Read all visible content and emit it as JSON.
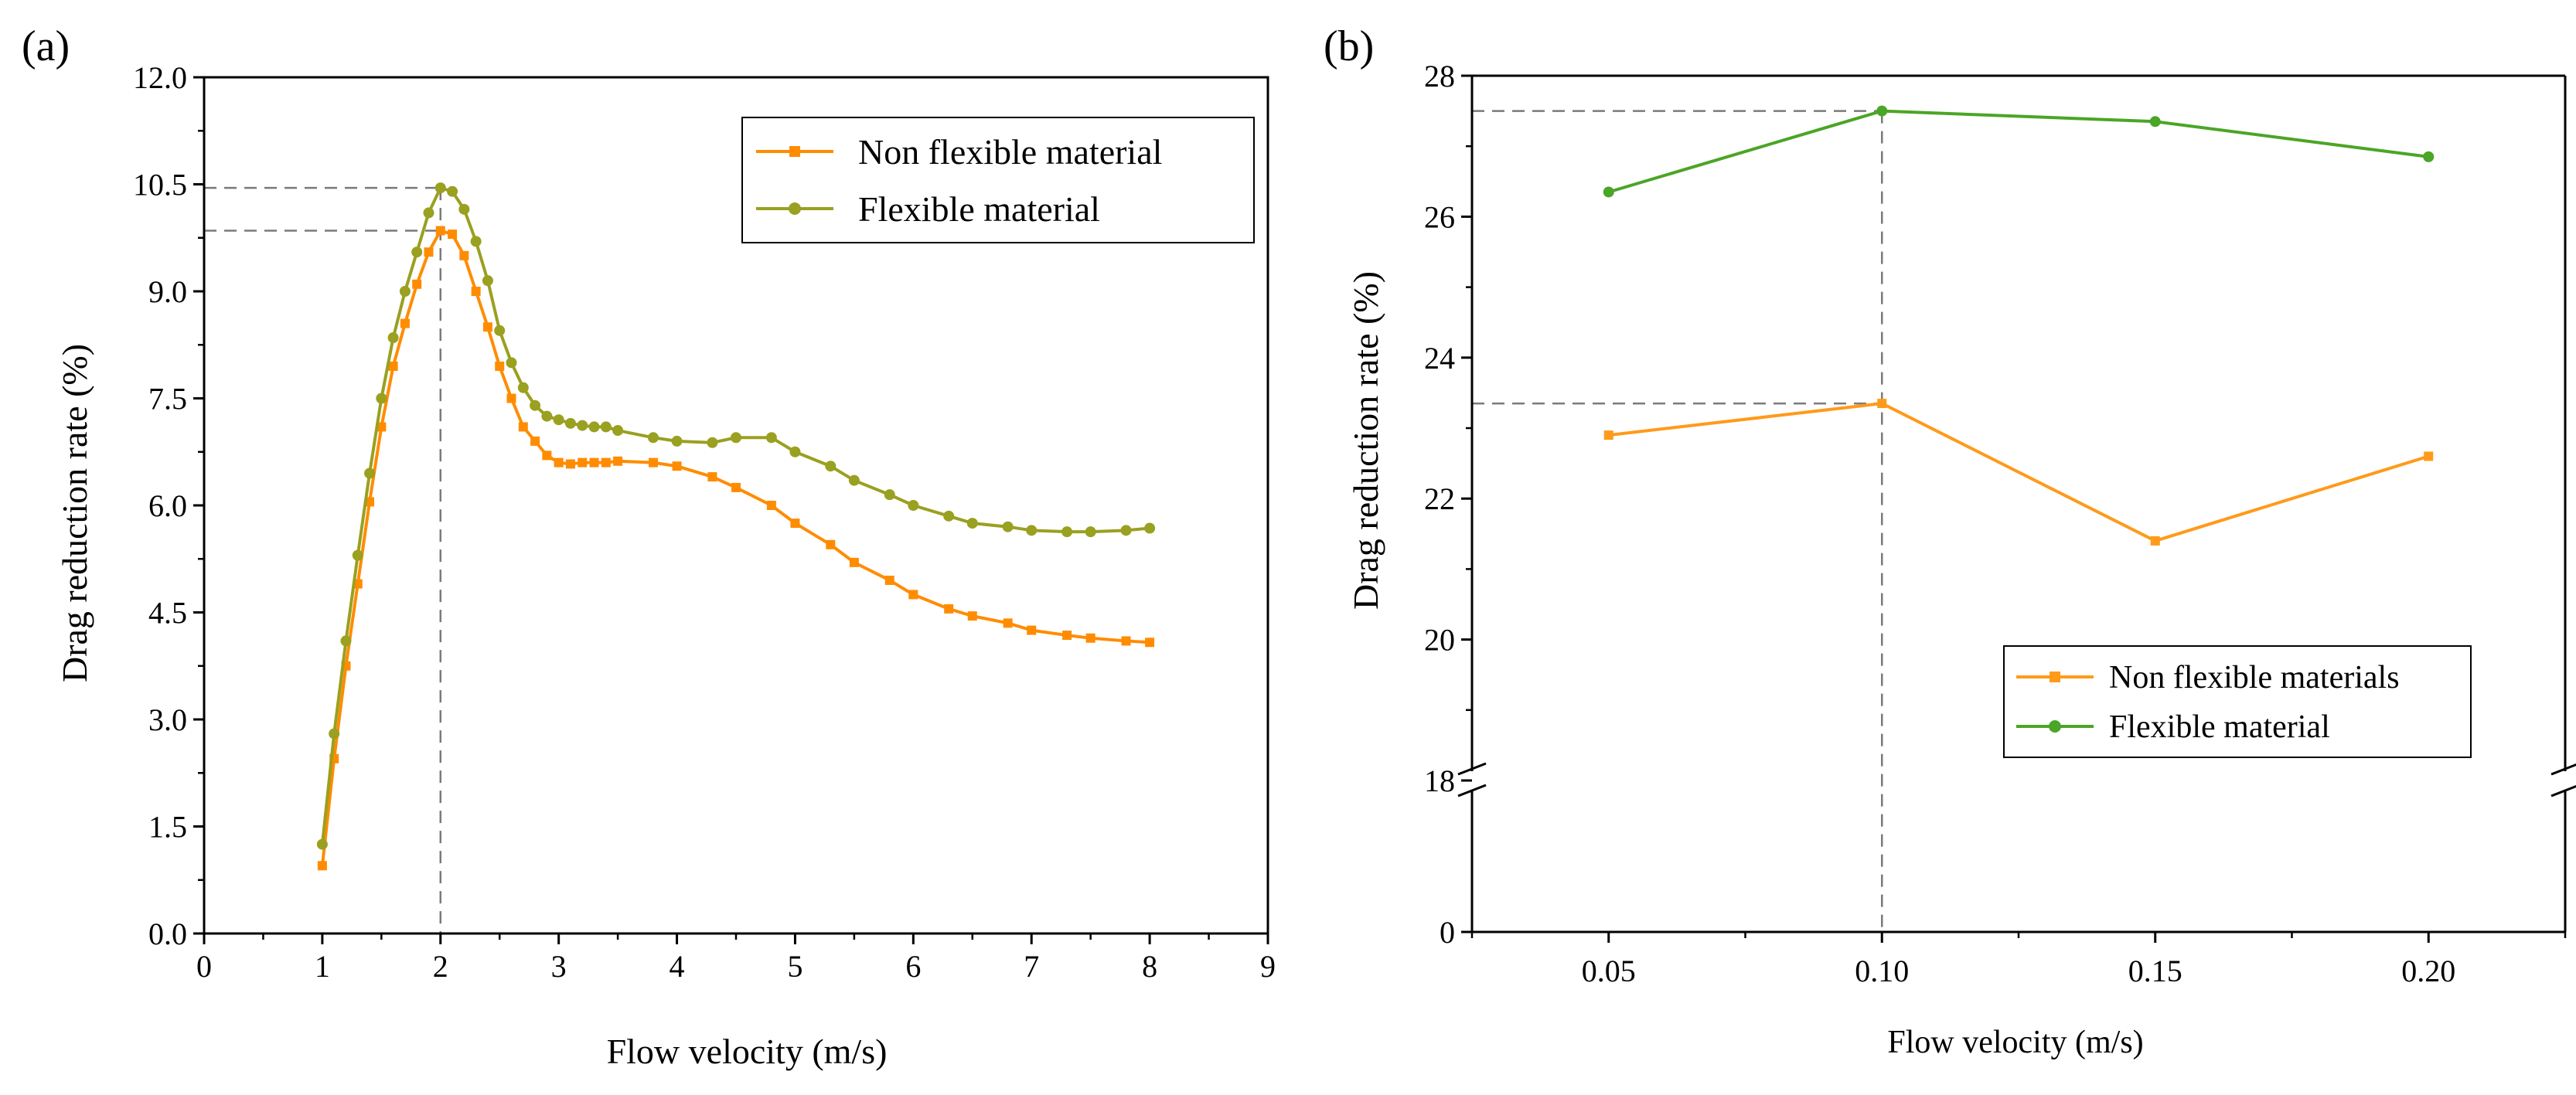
{
  "colors": {
    "non_flexible_a": "#ff8c00",
    "flexible_a": "#9aa020",
    "non_flexible_b": "#ff9a1a",
    "flexible_b": "#4ba526",
    "guide": "#7a7a7a"
  },
  "chart_data": [
    {
      "panel_label": "(a)",
      "type": "line",
      "xlabel": "Flow velocity (m/s)",
      "ylabel": "Drag reduction rate (%)",
      "xlim": [
        0,
        9
      ],
      "ylim": [
        0,
        12
      ],
      "x_ticks": [
        "0",
        "1",
        "2",
        "3",
        "4",
        "5",
        "6",
        "7",
        "8",
        "9"
      ],
      "y_ticks": [
        "0.0",
        "1.5",
        "3.0",
        "4.5",
        "6.0",
        "7.5",
        "9.0",
        "10.5",
        "12.0"
      ],
      "legend_position": "top-right",
      "guide_lines": {
        "x": 2,
        "y": [
          10.45,
          9.85
        ]
      },
      "series": [
        {
          "name": "Non flexible material",
          "marker": "square",
          "x": [
            1.0,
            1.1,
            1.2,
            1.3,
            1.4,
            1.5,
            1.6,
            1.7,
            1.8,
            1.9,
            2.0,
            2.1,
            2.2,
            2.3,
            2.4,
            2.5,
            2.6,
            2.7,
            2.8,
            2.9,
            3.0,
            3.1,
            3.2,
            3.3,
            3.4,
            3.5,
            3.8,
            4.0,
            4.3,
            4.5,
            4.8,
            5.0,
            5.3,
            5.5,
            5.8,
            6.0,
            6.3,
            6.5,
            6.8,
            7.0,
            7.3,
            7.5,
            7.8,
            8.0
          ],
          "y": [
            0.95,
            2.45,
            3.75,
            4.9,
            6.05,
            7.1,
            7.95,
            8.55,
            9.1,
            9.55,
            9.85,
            9.8,
            9.5,
            9.0,
            8.5,
            7.95,
            7.5,
            7.1,
            6.9,
            6.7,
            6.6,
            6.58,
            6.6,
            6.6,
            6.6,
            6.62,
            6.6,
            6.55,
            6.4,
            6.25,
            6.0,
            5.75,
            5.45,
            5.2,
            4.95,
            4.75,
            4.55,
            4.45,
            4.35,
            4.25,
            4.18,
            4.14,
            4.1,
            4.08
          ]
        },
        {
          "name": "Flexible material",
          "marker": "circle",
          "x": [
            1.0,
            1.1,
            1.2,
            1.3,
            1.4,
            1.5,
            1.6,
            1.7,
            1.8,
            1.9,
            2.0,
            2.1,
            2.2,
            2.3,
            2.4,
            2.5,
            2.6,
            2.7,
            2.8,
            2.9,
            3.0,
            3.1,
            3.2,
            3.3,
            3.4,
            3.5,
            3.8,
            4.0,
            4.3,
            4.5,
            4.8,
            5.0,
            5.3,
            5.5,
            5.8,
            6.0,
            6.3,
            6.5,
            6.8,
            7.0,
            7.3,
            7.5,
            7.8,
            8.0
          ],
          "y": [
            1.25,
            2.8,
            4.1,
            5.3,
            6.45,
            7.5,
            8.35,
            9.0,
            9.55,
            10.1,
            10.45,
            10.4,
            10.15,
            9.7,
            9.15,
            8.45,
            8.0,
            7.65,
            7.4,
            7.25,
            7.2,
            7.15,
            7.12,
            7.1,
            7.1,
            7.05,
            6.95,
            6.9,
            6.88,
            6.95,
            6.95,
            6.75,
            6.55,
            6.35,
            6.15,
            6.0,
            5.85,
            5.75,
            5.7,
            5.65,
            5.63,
            5.63,
            5.65,
            5.68
          ]
        }
      ]
    },
    {
      "panel_label": "(b)",
      "type": "line",
      "xlabel": "Flow velocity (m/s)",
      "ylabel": "Drag reduction rate (%)",
      "xlim": [
        0.025,
        0.225
      ],
      "x_ticks": [
        "0.05",
        "0.10",
        "0.15",
        "0.20"
      ],
      "y_ticks": [
        "0",
        "18",
        "20",
        "22",
        "24",
        "26",
        "28"
      ],
      "y_axis_break": [
        0,
        18
      ],
      "ylim_upper": [
        18,
        28
      ],
      "legend_position": "bottom-right",
      "guide_lines": {
        "x": 0.1,
        "y": [
          27.5,
          23.35
        ]
      },
      "series": [
        {
          "name": "Non flexible materials",
          "marker": "square",
          "x": [
            0.05,
            0.1,
            0.15,
            0.2
          ],
          "y": [
            22.9,
            23.35,
            21.4,
            22.6
          ]
        },
        {
          "name": "Flexible material",
          "marker": "circle",
          "x": [
            0.05,
            0.1,
            0.15,
            0.2
          ],
          "y": [
            26.35,
            27.5,
            27.35,
            26.85
          ]
        }
      ]
    }
  ]
}
